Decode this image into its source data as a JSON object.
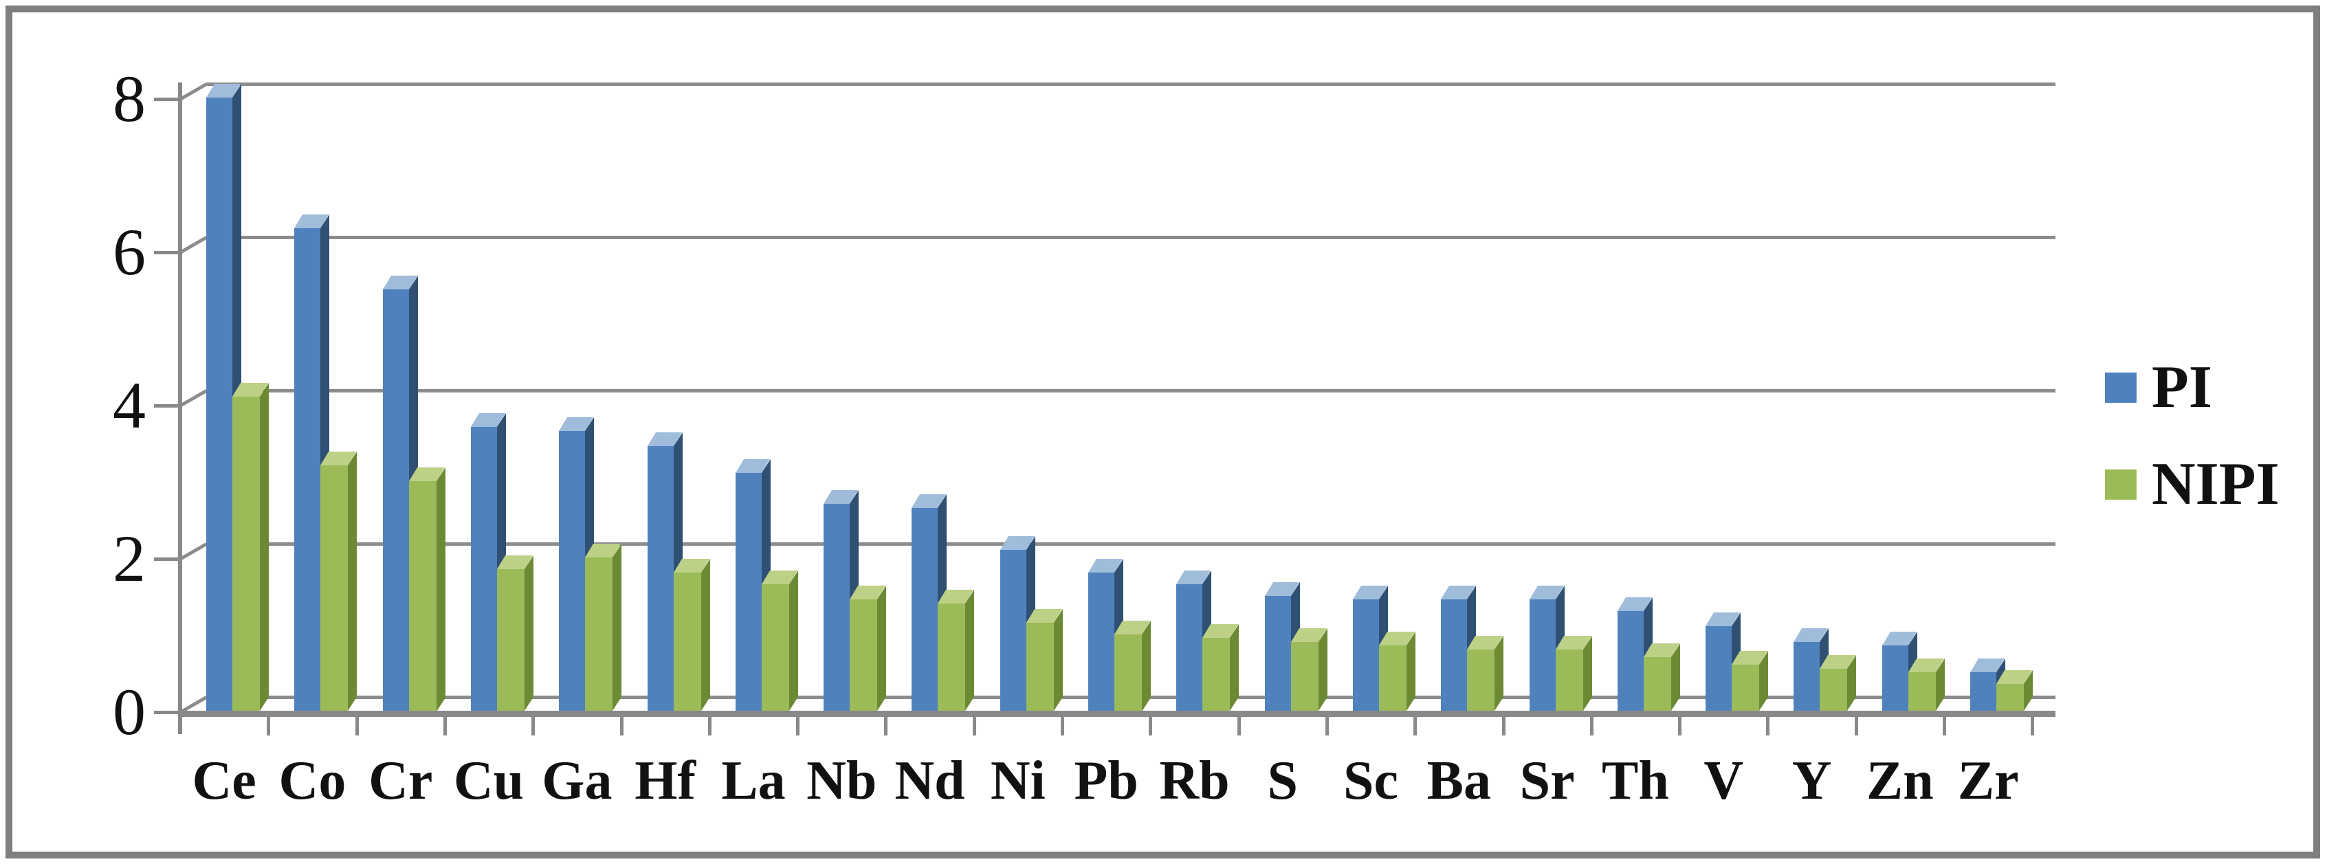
{
  "chart_data": {
    "type": "bar",
    "title": "",
    "xlabel": "",
    "ylabel": "",
    "categories": [
      "Ce",
      "Co",
      "Cr",
      "Cu",
      "Ga",
      "Hf",
      "La",
      "Nb",
      "Nd",
      "Ni",
      "Pb",
      "Rb",
      "S",
      "Sc",
      "Ba",
      "Sr",
      "Th",
      "V",
      "Y",
      "Zn",
      "Zr"
    ],
    "series": [
      {
        "name": "PI",
        "values": [
          8.0,
          6.3,
          5.5,
          3.7,
          3.65,
          3.45,
          3.1,
          2.7,
          2.65,
          2.1,
          1.8,
          1.65,
          1.5,
          1.45,
          1.45,
          1.45,
          1.3,
          1.1,
          0.9,
          0.85,
          0.5
        ]
      },
      {
        "name": "NIPI",
        "values": [
          4.1,
          3.2,
          3.0,
          1.85,
          2.0,
          1.8,
          1.65,
          1.45,
          1.4,
          1.15,
          1.0,
          0.95,
          0.9,
          0.85,
          0.8,
          0.8,
          0.7,
          0.6,
          0.55,
          0.5,
          0.35
        ]
      }
    ],
    "ylim": [
      0,
      8
    ],
    "yticks": [
      "0",
      "2",
      "4",
      "6",
      "8"
    ],
    "grid": true,
    "legend_position": "right",
    "style_3d": true
  },
  "legend": {
    "items": [
      {
        "label": "PI",
        "color": "#4F81BD"
      },
      {
        "label": "NIPI",
        "color": "#9BBB59"
      }
    ]
  },
  "colors": {
    "pi_front": "#4F81BD",
    "pi_side": "#2F5073",
    "pi_top": "#9FBCDB",
    "nipi_front": "#9BBB59",
    "nipi_side": "#6B8A33",
    "nipi_top": "#BDD186",
    "gridline": "#8c8c8c",
    "axis": "#898989",
    "frame": "#7f7f7f",
    "text": "#111111"
  }
}
